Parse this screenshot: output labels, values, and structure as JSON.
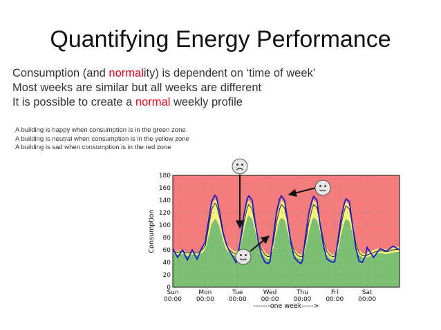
{
  "slide": {
    "title": "Quantifying Energy Performance",
    "bullets": [
      {
        "parts": [
          {
            "text": "Consumption (and ",
            "highlight": false
          },
          {
            "text": "normal",
            "highlight": true
          },
          {
            "text": "ity) is dependent on ‘time of week’",
            "highlight": false
          }
        ]
      },
      {
        "parts": [
          {
            "text": "Most weeks are similar but all weeks are different",
            "highlight": false
          }
        ]
      },
      {
        "parts": [
          {
            "text": "It is possible to create a ",
            "highlight": false
          },
          {
            "text": "normal",
            "highlight": true
          },
          {
            "text": " weekly profile",
            "highlight": false
          }
        ]
      }
    ],
    "notes": [
      "A building is happy when consumption is in the green zone",
      "A building is neutral when consumption is in the yellow zone",
      "A building is sad when consumption is in the red zone"
    ]
  },
  "colors": {
    "red_zone": "#f47c7c",
    "yellow_zone": "#f5f37a",
    "green_zone": "#7dbf73",
    "actual_line": "#1a1acc",
    "profile_line": "#333333",
    "highlight_text": "#e8001e"
  },
  "faces": [
    {
      "name": "sad-face-icon",
      "mood": "sad"
    },
    {
      "name": "neutral-face-icon",
      "mood": "neutral"
    },
    {
      "name": "happy-face-icon",
      "mood": "happy"
    }
  ],
  "chart_data": {
    "type": "area",
    "ylabel": "Consumption",
    "xlabel": "-------one week----->",
    "ylim": [
      0,
      180
    ],
    "xlim": [
      0,
      7
    ],
    "yticks": [
      0,
      20,
      40,
      60,
      80,
      100,
      120,
      140,
      160,
      180
    ],
    "xticks": [
      {
        "value": 0,
        "day": "Sun",
        "time": "00:00"
      },
      {
        "value": 1,
        "day": "Mon",
        "time": "00:00"
      },
      {
        "value": 2,
        "day": "Tue",
        "time": "00:00"
      },
      {
        "value": 3,
        "day": "Wed",
        "time": "00:00"
      },
      {
        "value": 4,
        "day": "Thu",
        "time": "00:00"
      },
      {
        "value": 5,
        "day": "Fri",
        "time": "00:00"
      },
      {
        "value": 6,
        "day": "Sat",
        "time": "00:00"
      }
    ],
    "grid": true,
    "x": [
      0,
      0.15,
      0.3,
      0.45,
      0.6,
      0.75,
      0.9,
      1.0,
      1.1,
      1.2,
      1.3,
      1.35,
      1.45,
      1.55,
      1.65,
      1.75,
      1.85,
      1.95,
      2.0,
      2.1,
      2.2,
      2.3,
      2.35,
      2.45,
      2.55,
      2.65,
      2.75,
      2.85,
      2.95,
      3.0,
      3.1,
      3.2,
      3.3,
      3.35,
      3.45,
      3.55,
      3.65,
      3.75,
      3.85,
      3.95,
      4.0,
      4.1,
      4.2,
      4.3,
      4.35,
      4.45,
      4.55,
      4.65,
      4.75,
      4.85,
      4.95,
      5.0,
      5.1,
      5.2,
      5.3,
      5.35,
      5.45,
      5.55,
      5.65,
      5.75,
      5.85,
      5.95,
      6.0,
      6.2,
      6.4,
      6.6,
      6.8,
      7.0
    ],
    "series": [
      {
        "zone": "green",
        "values": [
          55,
          52,
          54,
          50,
          53,
          51,
          55,
          60,
          80,
          102,
          110,
          108,
          95,
          75,
          60,
          55,
          52,
          50,
          52,
          68,
          92,
          112,
          115,
          110,
          88,
          65,
          55,
          48,
          45,
          46,
          62,
          88,
          108,
          112,
          108,
          88,
          65,
          52,
          47,
          45,
          46,
          62,
          88,
          108,
          112,
          108,
          88,
          65,
          52,
          47,
          45,
          46,
          60,
          86,
          105,
          110,
          106,
          85,
          62,
          52,
          48,
          46,
          48,
          52,
          55,
          53,
          56,
          57
        ]
      },
      {
        "zone": "yellow",
        "values": [
          60,
          58,
          60,
          56,
          58,
          56,
          62,
          70,
          100,
          130,
          142,
          138,
          118,
          92,
          72,
          64,
          60,
          57,
          60,
          82,
          112,
          135,
          140,
          132,
          105,
          78,
          64,
          56,
          52,
          54,
          78,
          110,
          132,
          140,
          135,
          110,
          80,
          62,
          55,
          52,
          54,
          78,
          110,
          132,
          140,
          135,
          110,
          80,
          62,
          55,
          52,
          54,
          76,
          108,
          130,
          138,
          132,
          106,
          76,
          60,
          55,
          53,
          56,
          60,
          63,
          61,
          64,
          65
        ]
      },
      {
        "name": "",
        "role": "actual",
        "values": [
          62,
          48,
          60,
          44,
          60,
          45,
          64,
          72,
          105,
          138,
          148,
          145,
          120,
          88,
          70,
          58,
          50,
          40,
          48,
          80,
          118,
          143,
          147,
          140,
          102,
          70,
          50,
          40,
          38,
          42,
          80,
          120,
          142,
          147,
          140,
          105,
          70,
          48,
          42,
          38,
          42,
          82,
          120,
          140,
          146,
          140,
          100,
          68,
          46,
          42,
          40,
          42,
          76,
          112,
          136,
          142,
          138,
          98,
          64,
          42,
          40,
          50,
          64,
          48,
          62,
          58,
          66,
          60
        ]
      },
      {
        "name": "",
        "role": "normal-profile",
        "values": [
          58,
          56,
          58,
          55,
          57,
          55,
          60,
          66,
          95,
          125,
          135,
          132,
          112,
          86,
          68,
          60,
          56,
          53,
          56,
          76,
          106,
          128,
          133,
          126,
          100,
          74,
          60,
          52,
          49,
          50,
          72,
          104,
          126,
          133,
          128,
          104,
          76,
          58,
          51,
          49,
          50,
          72,
          104,
          126,
          133,
          128,
          104,
          76,
          58,
          51,
          49,
          50,
          70,
          102,
          124,
          131,
          126,
          100,
          72,
          56,
          51,
          50,
          52,
          56,
          59,
          57,
          60,
          61
        ]
      }
    ]
  }
}
